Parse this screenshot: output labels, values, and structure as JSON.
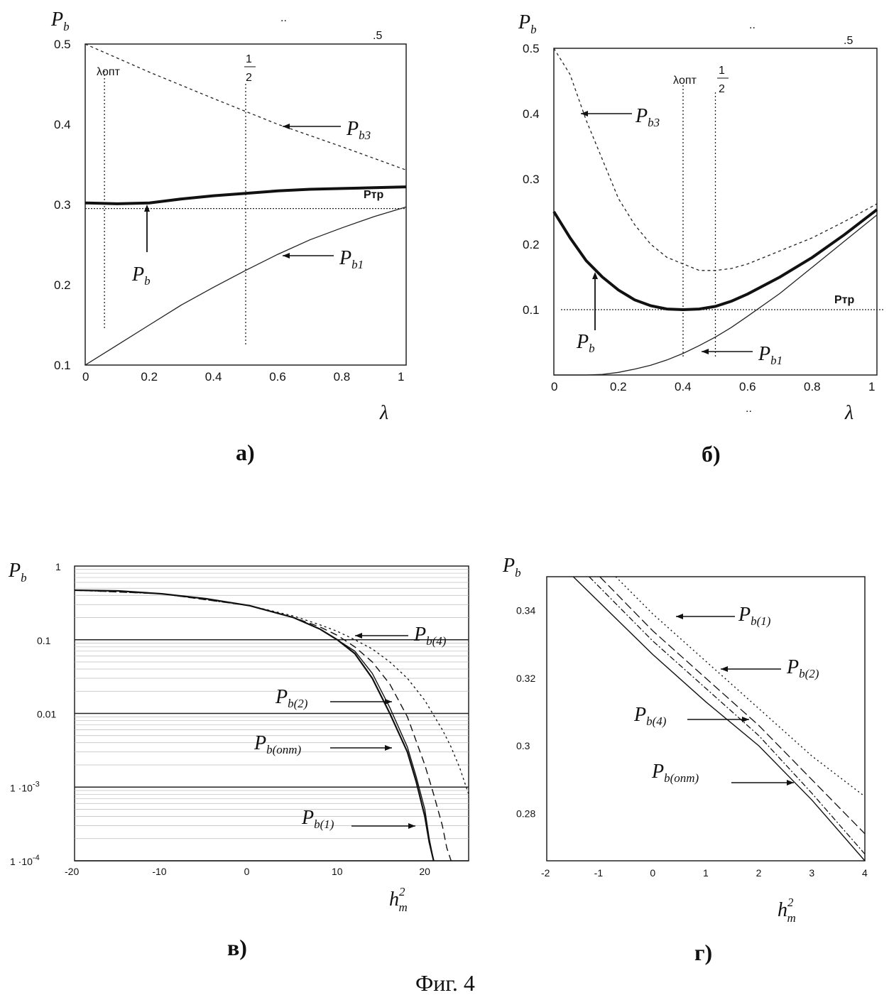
{
  "figure_caption": "Фиг. 4",
  "chart_data": [
    {
      "panel": "а)",
      "type": "line",
      "ylabel_main": "P",
      "ylabel_sub": "b",
      "xlabel": "λ",
      "xlim": [
        0,
        1
      ],
      "ylim": [
        0.1,
        0.5
      ],
      "xticks": [
        "0",
        "0.2",
        "0.4",
        "0.6",
        "0.8",
        "1"
      ],
      "yticks": [
        "0.1",
        "0.2",
        "0.3",
        "0.4",
        "0.5"
      ],
      "top_marks": [
        "..",
        ".5"
      ],
      "vlines": [
        {
          "x": 0.06,
          "label": "λопт"
        },
        {
          "x": 0.5,
          "label_num": "1",
          "label_den": "2"
        }
      ],
      "hline": {
        "y": 0.295,
        "label": "Pтр"
      },
      "series": [
        {
          "name": "Pb3",
          "x": [
            0,
            0.2,
            0.4,
            0.6,
            0.8,
            1.0
          ],
          "values": [
            0.5,
            0.465,
            0.432,
            0.4,
            0.372,
            0.343
          ]
        },
        {
          "name": "Pb",
          "x": [
            0,
            0.1,
            0.2,
            0.3,
            0.4,
            0.5,
            0.6,
            0.7,
            0.8,
            0.9,
            1.0
          ],
          "values": [
            0.302,
            0.301,
            0.302,
            0.307,
            0.311,
            0.314,
            0.317,
            0.319,
            0.32,
            0.321,
            0.322
          ]
        },
        {
          "name": "Pb1",
          "x": [
            0,
            0.1,
            0.2,
            0.3,
            0.4,
            0.5,
            0.6,
            0.7,
            0.8,
            0.9,
            1.0
          ],
          "values": [
            0.1,
            0.125,
            0.15,
            0.175,
            0.197,
            0.218,
            0.238,
            0.256,
            0.271,
            0.285,
            0.297
          ]
        }
      ],
      "labels": [
        {
          "text_main": "P",
          "text_sub": "b3"
        },
        {
          "text_main": "P",
          "text_sub": "b"
        },
        {
          "text_main": "P",
          "text_sub": "b1"
        }
      ]
    },
    {
      "panel": "б)",
      "type": "line",
      "ylabel_main": "P",
      "ylabel_sub": "b",
      "xlabel": "λ",
      "xlim": [
        0,
        1
      ],
      "ylim": [
        0,
        0.5
      ],
      "xticks": [
        "0",
        "0.2",
        "0.4",
        "0.6",
        "0.8",
        "1"
      ],
      "yticks": [
        "0.1",
        "0.2",
        "0.3",
        "0.4",
        "0.5"
      ],
      "top_marks": [
        "..",
        ".5"
      ],
      "vlines": [
        {
          "x": 0.4,
          "label": "λопт"
        },
        {
          "x": 0.5,
          "label_num": "1",
          "label_den": "2"
        }
      ],
      "hline": {
        "y": 0.1,
        "label": "Pтр"
      },
      "series": [
        {
          "name": "Pb3",
          "x": [
            0,
            0.05,
            0.1,
            0.15,
            0.2,
            0.25,
            0.3,
            0.35,
            0.4,
            0.45,
            0.5,
            0.55,
            0.6,
            0.7,
            0.8,
            0.9,
            1.0
          ],
          "values": [
            0.5,
            0.46,
            0.39,
            0.33,
            0.27,
            0.23,
            0.2,
            0.18,
            0.17,
            0.16,
            0.16,
            0.163,
            0.17,
            0.19,
            0.21,
            0.235,
            0.262
          ]
        },
        {
          "name": "Pb",
          "x": [
            0,
            0.05,
            0.1,
            0.15,
            0.2,
            0.25,
            0.3,
            0.35,
            0.4,
            0.45,
            0.5,
            0.55,
            0.6,
            0.7,
            0.8,
            0.9,
            1.0
          ],
          "values": [
            0.25,
            0.21,
            0.175,
            0.15,
            0.13,
            0.115,
            0.106,
            0.101,
            0.1,
            0.101,
            0.105,
            0.113,
            0.124,
            0.15,
            0.18,
            0.215,
            0.253
          ]
        },
        {
          "name": "Pb1",
          "x": [
            0,
            0.1,
            0.15,
            0.2,
            0.25,
            0.3,
            0.35,
            0.4,
            0.45,
            0.5,
            0.55,
            0.6,
            0.7,
            0.8,
            0.9,
            1.0
          ],
          "values": [
            0,
            0,
            0.001,
            0.004,
            0.009,
            0.015,
            0.023,
            0.033,
            0.045,
            0.058,
            0.073,
            0.09,
            0.125,
            0.165,
            0.205,
            0.245
          ]
        }
      ],
      "labels": [
        {
          "text_main": "P",
          "text_sub": "b3"
        },
        {
          "text_main": "P",
          "text_sub": "b"
        },
        {
          "text_main": "P",
          "text_sub": "b1"
        }
      ]
    },
    {
      "panel": "в)",
      "type": "line",
      "yscale": "log",
      "ylabel_main": "P",
      "ylabel_sub": "b",
      "xlabel_main": "h",
      "xlabel_sup": "2",
      "xlabel_sub": "m",
      "xlim": [
        -20,
        25
      ],
      "ylim": [
        0.0001,
        1
      ],
      "xticks": [
        "-20",
        "-10",
        "0",
        "10",
        "20"
      ],
      "yticks": [
        "1",
        "0.1",
        "0.01",
        "1 ·10",
        "1 ·10"
      ],
      "ytick_exponents": [
        "",
        "",
        "",
        "-3",
        "-4"
      ],
      "grid": true,
      "series": [
        {
          "name": "Pb(onm)",
          "x": [
            -20,
            -15,
            -10,
            -5,
            0,
            5,
            8,
            10,
            12,
            14,
            16,
            18,
            19,
            20,
            20.5,
            21
          ],
          "values": [
            0.47,
            0.46,
            0.42,
            0.36,
            0.29,
            0.2,
            0.14,
            0.1,
            0.065,
            0.03,
            0.01,
            0.003,
            0.0012,
            0.0004,
            0.00018,
            0.0001
          ]
        },
        {
          "name": "Pb(1)",
          "x": [
            -20,
            -15,
            -10,
            -5,
            0,
            5,
            8,
            10,
            12,
            14,
            16,
            18,
            19,
            20,
            20.5,
            21
          ],
          "values": [
            0.47,
            0.46,
            0.42,
            0.36,
            0.29,
            0.2,
            0.14,
            0.1,
            0.07,
            0.035,
            0.012,
            0.0035,
            0.0014,
            0.0005,
            0.0002,
            0.0001
          ]
        },
        {
          "name": "Pb(2)",
          "x": [
            -20,
            -10,
            0,
            5,
            8,
            10,
            12,
            14,
            16,
            18,
            20,
            21,
            22,
            22.5,
            23
          ],
          "values": [
            0.47,
            0.42,
            0.29,
            0.2,
            0.15,
            0.115,
            0.08,
            0.05,
            0.025,
            0.009,
            0.002,
            0.0008,
            0.0003,
            0.00015,
            0.0001
          ]
        },
        {
          "name": "Pb(4)",
          "x": [
            -20,
            -10,
            0,
            5,
            8,
            10,
            12,
            14,
            16,
            18,
            20,
            22,
            23,
            24,
            24.5,
            25
          ],
          "values": [
            0.47,
            0.42,
            0.29,
            0.21,
            0.16,
            0.13,
            0.1,
            0.075,
            0.05,
            0.03,
            0.015,
            0.006,
            0.0035,
            0.0018,
            0.0012,
            0.0008
          ]
        }
      ],
      "labels": [
        {
          "text_main": "P",
          "text_sub": "b(4)"
        },
        {
          "text_main": "P",
          "text_sub": "b(2)"
        },
        {
          "text_main": "P",
          "text_sub": "b(onm)"
        },
        {
          "text_main": "P",
          "text_sub": "b(1)"
        }
      ]
    },
    {
      "panel": "г)",
      "type": "line",
      "ylabel_main": "P",
      "ylabel_sub": "b",
      "xlabel_main": "h",
      "xlabel_sup": "2",
      "xlabel_sub": "m",
      "xlim": [
        -2,
        4
      ],
      "ylim": [
        0.266,
        0.35
      ],
      "xticks": [
        "-2",
        "-1",
        "0",
        "1",
        "2",
        "3",
        "4"
      ],
      "yticks": [
        "0.34",
        "0.32",
        "0.3",
        "0.28"
      ],
      "series": [
        {
          "name": "Pb(onm)",
          "x": [
            -1.5,
            0,
            1,
            2,
            3,
            4
          ],
          "values": [
            0.35,
            0.327,
            0.313,
            0.3,
            0.284,
            0.266
          ]
        },
        {
          "name": "Pb(4)",
          "x": [
            -1.2,
            0,
            1,
            2,
            3,
            4
          ],
          "values": [
            0.35,
            0.331,
            0.317,
            0.303,
            0.286,
            0.268
          ]
        },
        {
          "name": "Pb(2)",
          "x": [
            -1,
            0,
            1,
            2,
            3,
            4
          ],
          "values": [
            0.35,
            0.334,
            0.32,
            0.306,
            0.29,
            0.274
          ]
        },
        {
          "name": "Pb(1)",
          "x": [
            -0.7,
            0,
            1,
            2,
            3,
            4
          ],
          "values": [
            0.35,
            0.339,
            0.325,
            0.311,
            0.297,
            0.285
          ]
        }
      ],
      "labels": [
        {
          "text_main": "P",
          "text_sub": "b(1)"
        },
        {
          "text_main": "P",
          "text_sub": "b(2)"
        },
        {
          "text_main": "P",
          "text_sub": "b(4)"
        },
        {
          "text_main": "P",
          "text_sub": "b(onm)"
        }
      ]
    }
  ]
}
